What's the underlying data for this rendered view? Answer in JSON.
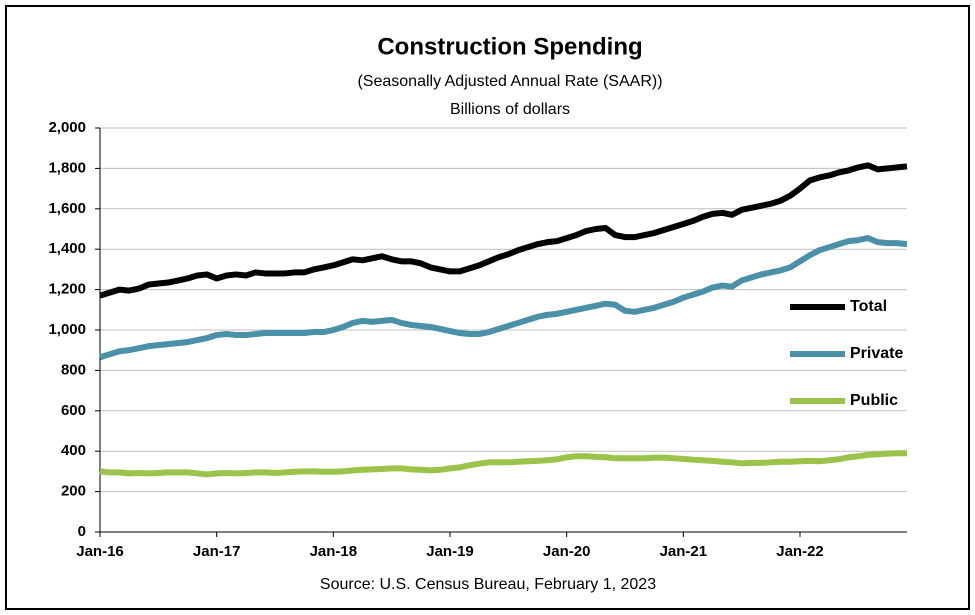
{
  "chart_data": {
    "type": "line",
    "title": "Construction Spending",
    "subtitle": "(Seasonally Adjusted Annual Rate (SAAR))",
    "y_label": "Billions of dollars",
    "source": "Source: U.S. Census  Bureau, February  1, 2023",
    "categories": [
      "Jan-16",
      null,
      null,
      null,
      null,
      null,
      null,
      null,
      null,
      null,
      null,
      null,
      "Jan-17",
      null,
      null,
      null,
      null,
      null,
      null,
      null,
      null,
      null,
      null,
      null,
      "Jan-18",
      null,
      null,
      null,
      null,
      null,
      null,
      null,
      null,
      null,
      null,
      null,
      "Jan-19",
      null,
      null,
      null,
      null,
      null,
      null,
      null,
      null,
      null,
      null,
      null,
      "Jan-20",
      null,
      null,
      null,
      null,
      null,
      null,
      null,
      null,
      null,
      null,
      null,
      "Jan-21",
      null,
      null,
      null,
      null,
      null,
      null,
      null,
      null,
      null,
      null,
      null,
      "Jan-22",
      null,
      null,
      null,
      null,
      null,
      null,
      null,
      null,
      null,
      null,
      null
    ],
    "series": [
      {
        "name": "Total",
        "color": "#000000",
        "values": [
          1170,
          1185,
          1200,
          1195,
          1205,
          1225,
          1230,
          1235,
          1245,
          1255,
          1270,
          1275,
          1255,
          1270,
          1275,
          1270,
          1285,
          1280,
          1280,
          1280,
          1285,
          1285,
          1300,
          1310,
          1320,
          1335,
          1350,
          1345,
          1355,
          1365,
          1350,
          1340,
          1340,
          1330,
          1310,
          1300,
          1290,
          1290,
          1305,
          1320,
          1340,
          1360,
          1375,
          1395,
          1410,
          1425,
          1435,
          1440,
          1455,
          1470,
          1490,
          1500,
          1505,
          1470,
          1460,
          1460,
          1470,
          1480,
          1495,
          1510,
          1525,
          1540,
          1560,
          1575,
          1580,
          1570,
          1595,
          1605,
          1615,
          1625,
          1640,
          1665,
          1700,
          1740,
          1755,
          1765,
          1780,
          1790,
          1805,
          1815,
          1795,
          1800,
          1805,
          1810
        ]
      },
      {
        "name": "Private",
        "color": "#4a90a8",
        "values": [
          865,
          880,
          895,
          900,
          910,
          920,
          925,
          930,
          935,
          940,
          950,
          960,
          975,
          980,
          975,
          975,
          980,
          985,
          985,
          985,
          985,
          985,
          990,
          990,
          1000,
          1015,
          1035,
          1045,
          1040,
          1045,
          1050,
          1035,
          1025,
          1020,
          1015,
          1005,
          995,
          985,
          980,
          980,
          990,
          1005,
          1020,
          1035,
          1050,
          1065,
          1075,
          1080,
          1090,
          1100,
          1110,
          1120,
          1130,
          1125,
          1095,
          1090,
          1100,
          1110,
          1125,
          1140,
          1160,
          1175,
          1190,
          1210,
          1220,
          1215,
          1245,
          1260,
          1275,
          1285,
          1295,
          1310,
          1340,
          1370,
          1395,
          1410,
          1425,
          1440,
          1445,
          1455,
          1435,
          1430,
          1430,
          1425
        ]
      },
      {
        "name": "Public",
        "color": "#9bc34a",
        "values": [
          300,
          295,
          295,
          290,
          292,
          290,
          292,
          295,
          295,
          295,
          290,
          285,
          290,
          292,
          290,
          292,
          295,
          295,
          292,
          295,
          298,
          300,
          300,
          298,
          298,
          300,
          305,
          308,
          310,
          312,
          315,
          315,
          310,
          308,
          305,
          308,
          315,
          320,
          330,
          338,
          345,
          345,
          345,
          348,
          350,
          352,
          355,
          360,
          370,
          375,
          375,
          372,
          370,
          365,
          365,
          365,
          365,
          368,
          368,
          365,
          362,
          358,
          355,
          352,
          348,
          345,
          340,
          342,
          342,
          345,
          348,
          348,
          350,
          352,
          350,
          355,
          360,
          370,
          375,
          382,
          385,
          388,
          390,
          390
        ]
      }
    ],
    "ylim": [
      0,
      2000
    ],
    "yticks": [
      0,
      {
        "value": 200,
        "label": "200"
      },
      400,
      600,
      800,
      {
        "value": 1000,
        "label": "1,000"
      },
      {
        "value": 1200,
        "label": "1,200"
      },
      {
        "value": 1400,
        "label": "1,400"
      },
      {
        "value": 1600,
        "label": "1,600"
      },
      {
        "value": 1800,
        "label": "1,800"
      },
      {
        "value": 2000,
        "label": "2,000"
      }
    ],
    "grid": true
  }
}
